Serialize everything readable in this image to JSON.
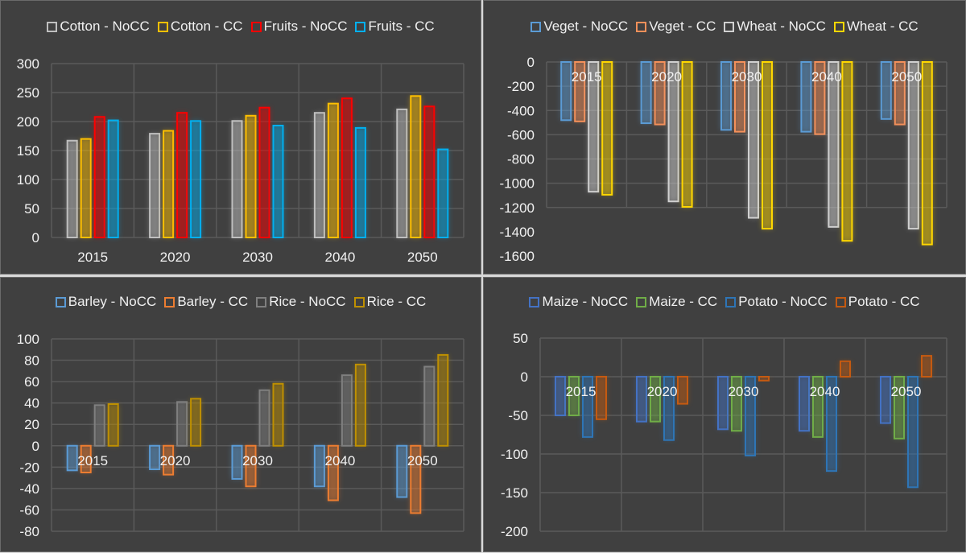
{
  "chart_data": [
    {
      "type": "bar",
      "categories": [
        "2015",
        "2020",
        "2030",
        "2040",
        "2050"
      ],
      "ylim": [
        0,
        300
      ],
      "ystep": 50,
      "grid": true,
      "legend": "top",
      "series": [
        {
          "name": "Cotton - NoCC",
          "color": "#bfbfbf",
          "values": [
            167,
            179,
            201,
            215,
            221
          ]
        },
        {
          "name": "Cotton - CC",
          "color": "#ffc000",
          "values": [
            170,
            184,
            210,
            231,
            244
          ]
        },
        {
          "name": "Fruits - NoCC",
          "color": "#ff0000",
          "values": [
            208,
            215,
            224,
            240,
            226
          ]
        },
        {
          "name": "Fruits - CC",
          "color": "#00b0f0",
          "values": [
            202,
            201,
            193,
            189,
            152
          ]
        }
      ]
    },
    {
      "type": "bar",
      "categories": [
        "2015",
        "2020",
        "2030",
        "2040",
        "2050"
      ],
      "ylim": [
        -1600,
        0
      ],
      "ystep": 200,
      "grid": true,
      "legend": "top",
      "series": [
        {
          "name": "Veget - NoCC",
          "color": "#5b9bd5",
          "values": [
            -480,
            -505,
            -560,
            -575,
            -470
          ]
        },
        {
          "name": "Veget - CC",
          "color": "#f4905a",
          "values": [
            -490,
            -515,
            -575,
            -595,
            -515
          ]
        },
        {
          "name": "Wheat - NoCC",
          "color": "#d0d0d0",
          "values": [
            -1070,
            -1150,
            -1285,
            -1360,
            -1375
          ]
        },
        {
          "name": "Wheat - CC",
          "color": "#ffd700",
          "values": [
            -1095,
            -1195,
            -1375,
            -1475,
            -1505
          ]
        }
      ]
    },
    {
      "type": "bar",
      "categories": [
        "2015",
        "2020",
        "2030",
        "2040",
        "2050"
      ],
      "ylim": [
        -80,
        100
      ],
      "ystep": 20,
      "grid": true,
      "legend": "top",
      "series": [
        {
          "name": "Barley - NoCC",
          "color": "#5b9bd5",
          "values": [
            -23,
            -22,
            -31,
            -38,
            -48
          ]
        },
        {
          "name": "Barley - CC",
          "color": "#ed7d31",
          "values": [
            -25,
            -27,
            -38,
            -51,
            -63
          ]
        },
        {
          "name": "Rice - NoCC",
          "color": "#7f7f7f",
          "values": [
            38,
            41,
            52,
            66,
            74
          ]
        },
        {
          "name": "Rice - CC",
          "color": "#bf9000",
          "values": [
            39,
            44,
            58,
            76,
            85
          ]
        }
      ]
    },
    {
      "type": "bar",
      "categories": [
        "2015",
        "2020",
        "2030",
        "2040",
        "2050"
      ],
      "ylim": [
        -200,
        50
      ],
      "ystep": 50,
      "grid": true,
      "legend": "top",
      "series": [
        {
          "name": "Maize - NoCC",
          "color": "#4472c4",
          "values": [
            -50,
            -58,
            -68,
            -70,
            -60
          ]
        },
        {
          "name": "Maize - CC",
          "color": "#70ad47",
          "values": [
            -50,
            -58,
            -70,
            -78,
            -80
          ]
        },
        {
          "name": "Potato - NoCC",
          "color": "#2e75b6",
          "values": [
            -78,
            -82,
            -102,
            -122,
            -143
          ]
        },
        {
          "name": "Potato - CC",
          "color": "#c55a11",
          "values": [
            -55,
            -35,
            -5,
            20,
            27
          ]
        }
      ]
    }
  ]
}
